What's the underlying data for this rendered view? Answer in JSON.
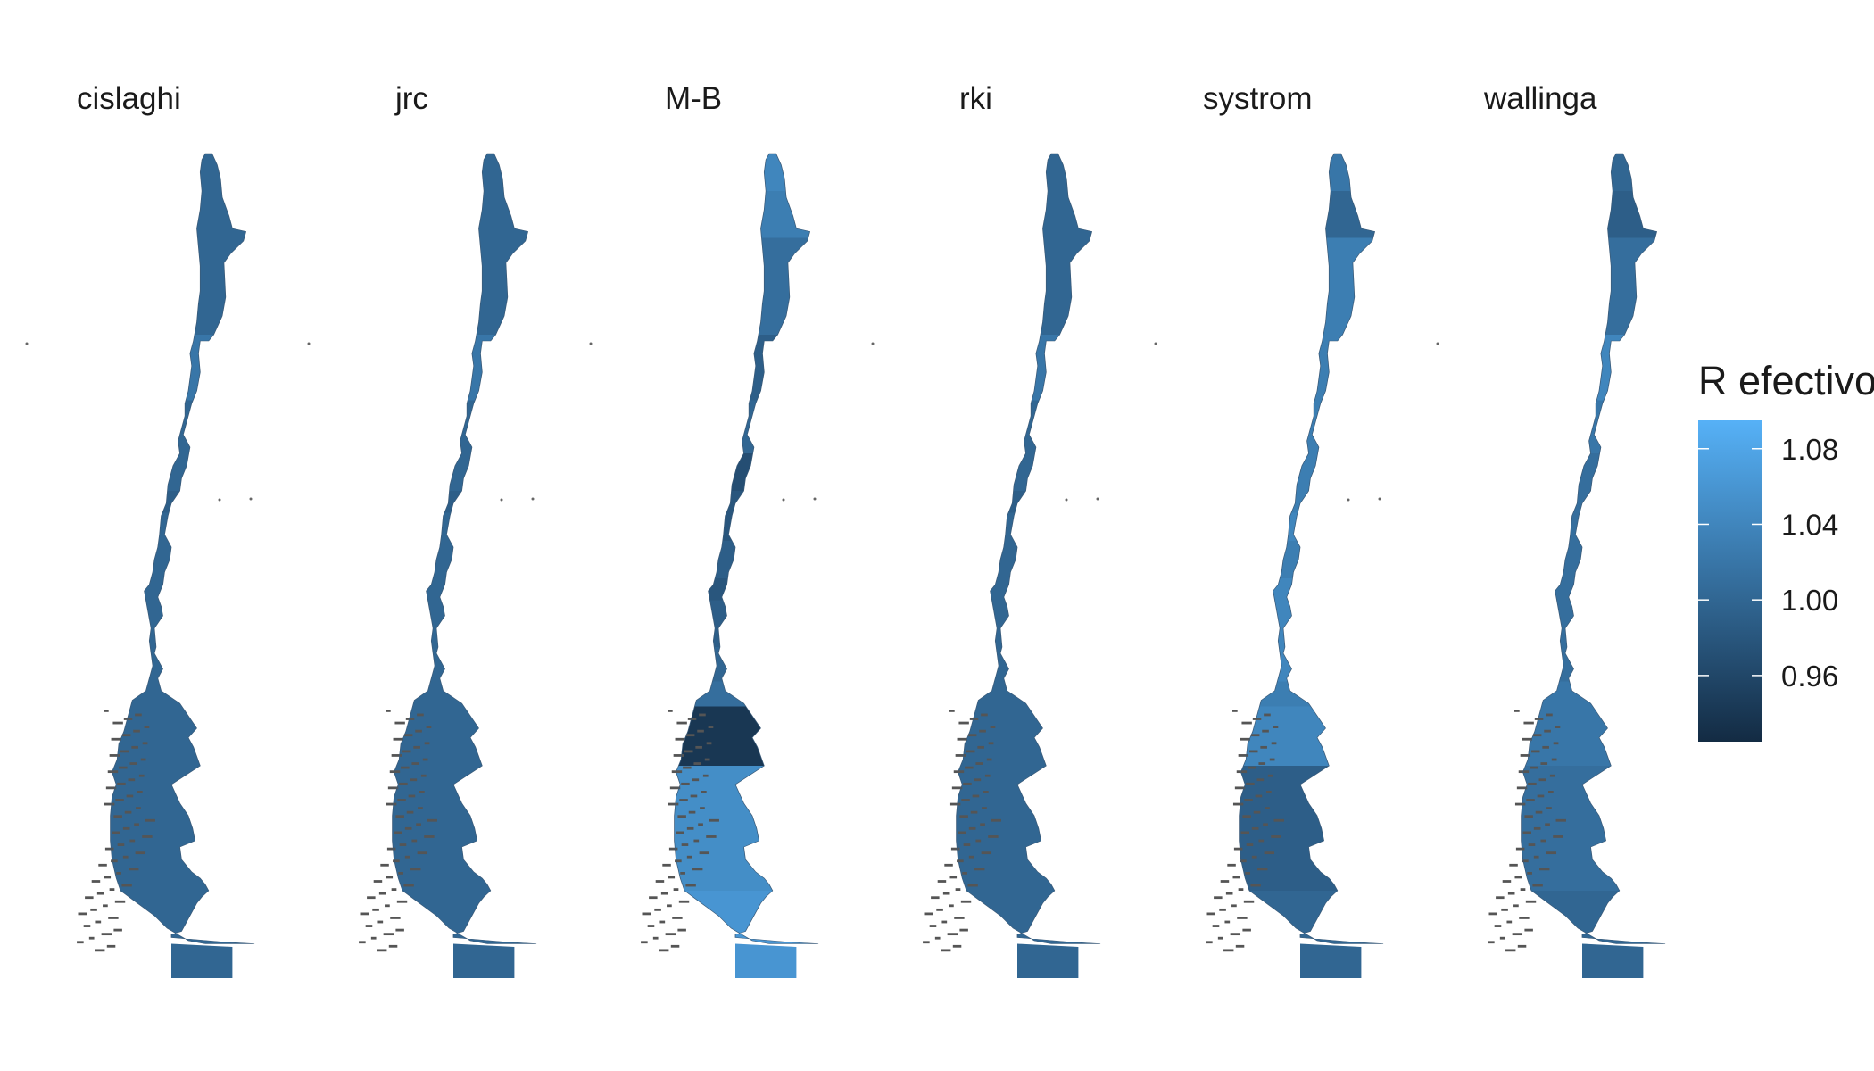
{
  "panels": [
    {
      "name": "cislaghi",
      "title": "cislaghi",
      "regions": [
        {
          "region": "arica-parinacota",
          "r": 1.0
        },
        {
          "region": "tarapaca",
          "r": 1.0
        },
        {
          "region": "antofagasta",
          "r": 1.0
        },
        {
          "region": "atacama",
          "r": 1.02
        },
        {
          "region": "coquimbo",
          "r": 1.0
        },
        {
          "region": "valparaiso",
          "r": 1.0
        },
        {
          "region": "metropolitana",
          "r": 0.99
        },
        {
          "region": "ohiggins",
          "r": 1.0
        },
        {
          "region": "maule",
          "r": 1.0
        },
        {
          "region": "nuble",
          "r": 1.0
        },
        {
          "region": "biobio",
          "r": 1.0
        },
        {
          "region": "araucania",
          "r": 1.0
        },
        {
          "region": "los-rios",
          "r": 1.0
        },
        {
          "region": "los-lagos",
          "r": 1.0
        },
        {
          "region": "aysen",
          "r": 1.0
        },
        {
          "region": "magallanes",
          "r": 1.0
        }
      ]
    },
    {
      "name": "jrc",
      "title": "jrc",
      "regions": [
        {
          "region": "arica-parinacota",
          "r": 1.0
        },
        {
          "region": "tarapaca",
          "r": 1.0
        },
        {
          "region": "antofagasta",
          "r": 1.0
        },
        {
          "region": "atacama",
          "r": 1.02
        },
        {
          "region": "coquimbo",
          "r": 1.0
        },
        {
          "region": "valparaiso",
          "r": 1.0
        },
        {
          "region": "metropolitana",
          "r": 0.99
        },
        {
          "region": "ohiggins",
          "r": 1.0
        },
        {
          "region": "maule",
          "r": 1.0
        },
        {
          "region": "nuble",
          "r": 1.0
        },
        {
          "region": "biobio",
          "r": 1.0
        },
        {
          "region": "araucania",
          "r": 1.0
        },
        {
          "region": "los-rios",
          "r": 1.0
        },
        {
          "region": "los-lagos",
          "r": 1.0
        },
        {
          "region": "aysen",
          "r": 1.0
        },
        {
          "region": "magallanes",
          "r": 1.0
        }
      ]
    },
    {
      "name": "M-B",
      "title": "M-B",
      "regions": [
        {
          "region": "arica-parinacota",
          "r": 1.04
        },
        {
          "region": "tarapaca",
          "r": 1.03
        },
        {
          "region": "antofagasta",
          "r": 1.01
        },
        {
          "region": "atacama",
          "r": 0.99
        },
        {
          "region": "coquimbo",
          "r": 1.0
        },
        {
          "region": "valparaiso",
          "r": 0.97
        },
        {
          "region": "metropolitana",
          "r": 0.98
        },
        {
          "region": "ohiggins",
          "r": 0.98
        },
        {
          "region": "maule",
          "r": 0.99
        },
        {
          "region": "nuble",
          "r": 0.98
        },
        {
          "region": "biobio",
          "r": 0.99
        },
        {
          "region": "araucania",
          "r": 1.0
        },
        {
          "region": "los-rios",
          "r": 1.01
        },
        {
          "region": "los-lagos",
          "r": 0.94
        },
        {
          "region": "aysen",
          "r": 1.05
        },
        {
          "region": "magallanes",
          "r": 1.06
        }
      ]
    },
    {
      "name": "rki",
      "title": "rki",
      "regions": [
        {
          "region": "arica-parinacota",
          "r": 1.0
        },
        {
          "region": "tarapaca",
          "r": 1.0
        },
        {
          "region": "antofagasta",
          "r": 1.0
        },
        {
          "region": "atacama",
          "r": 1.02
        },
        {
          "region": "coquimbo",
          "r": 1.0
        },
        {
          "region": "valparaiso",
          "r": 1.0
        },
        {
          "region": "metropolitana",
          "r": 0.99
        },
        {
          "region": "ohiggins",
          "r": 1.0
        },
        {
          "region": "maule",
          "r": 1.0
        },
        {
          "region": "nuble",
          "r": 1.0
        },
        {
          "region": "biobio",
          "r": 1.0
        },
        {
          "region": "araucania",
          "r": 1.0
        },
        {
          "region": "los-rios",
          "r": 1.0
        },
        {
          "region": "los-lagos",
          "r": 1.0
        },
        {
          "region": "aysen",
          "r": 1.0
        },
        {
          "region": "magallanes",
          "r": 1.0
        }
      ]
    },
    {
      "name": "systrom",
      "title": "systrom",
      "regions": [
        {
          "region": "arica-parinacota",
          "r": 1.02
        },
        {
          "region": "tarapaca",
          "r": 1.0
        },
        {
          "region": "antofagasta",
          "r": 1.03
        },
        {
          "region": "atacama",
          "r": 1.03
        },
        {
          "region": "coquimbo",
          "r": 1.03
        },
        {
          "region": "valparaiso",
          "r": 1.03
        },
        {
          "region": "metropolitana",
          "r": 1.03
        },
        {
          "region": "ohiggins",
          "r": 1.04
        },
        {
          "region": "maule",
          "r": 1.03
        },
        {
          "region": "nuble",
          "r": 1.04
        },
        {
          "region": "biobio",
          "r": 1.04
        },
        {
          "region": "araucania",
          "r": 1.04
        },
        {
          "region": "los-rios",
          "r": 1.03
        },
        {
          "region": "los-lagos",
          "r": 1.04
        },
        {
          "region": "aysen",
          "r": 0.99
        },
        {
          "region": "magallanes",
          "r": 1.0
        }
      ]
    },
    {
      "name": "wallinga",
      "title": "wallinga",
      "regions": [
        {
          "region": "arica-parinacota",
          "r": 1.0
        },
        {
          "region": "tarapaca",
          "r": 0.99
        },
        {
          "region": "antofagasta",
          "r": 1.01
        },
        {
          "region": "atacama",
          "r": 1.04
        },
        {
          "region": "coquimbo",
          "r": 1.02
        },
        {
          "region": "valparaiso",
          "r": 1.01
        },
        {
          "region": "metropolitana",
          "r": 1.01
        },
        {
          "region": "ohiggins",
          "r": 1.01
        },
        {
          "region": "maule",
          "r": 1.01
        },
        {
          "region": "nuble",
          "r": 1.01
        },
        {
          "region": "biobio",
          "r": 1.01
        },
        {
          "region": "araucania",
          "r": 1.01
        },
        {
          "region": "los-rios",
          "r": 1.02
        },
        {
          "region": "los-lagos",
          "r": 1.02
        },
        {
          "region": "aysen",
          "r": 1.01
        },
        {
          "region": "magallanes",
          "r": 1.0
        }
      ]
    }
  ],
  "legend": {
    "title": "R efectivo",
    "min": 0.925,
    "max": 1.095,
    "low_color": "#132b43",
    "high_color": "#56b1f7",
    "ticks": [
      {
        "value": 1.08,
        "label": "1.08"
      },
      {
        "value": 1.04,
        "label": "1.04"
      },
      {
        "value": 1.0,
        "label": "1.00"
      },
      {
        "value": 0.96,
        "label": "0.96"
      }
    ]
  },
  "island_color": "#555555"
}
